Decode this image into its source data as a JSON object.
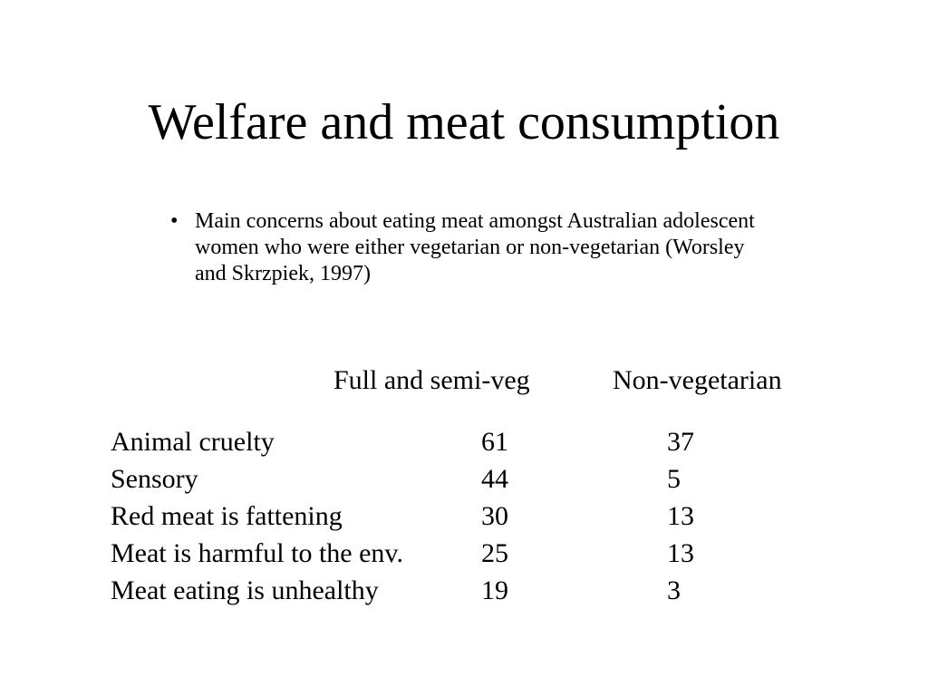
{
  "slide": {
    "title": "Welfare and meat consumption",
    "bullet": {
      "marker": "•",
      "text": "Main concerns about eating meat amongst Australian adolescent women who were either vegetarian or non-vegetarian (Worsley and Skrzpiek, 1997)"
    }
  },
  "table": {
    "columns": [
      "Full and semi-veg",
      "Non-vegetarian"
    ],
    "rows": [
      {
        "label": "Animal cruelty",
        "veg": "61",
        "nonveg": "37"
      },
      {
        "label": "Sensory",
        "veg": "44",
        "nonveg": "5"
      },
      {
        "label": "Red meat is fattening",
        "veg": "30",
        "nonveg": "13"
      },
      {
        "label": "Meat is harmful to the env.",
        "veg": "25",
        "nonveg": "13"
      },
      {
        "label": "Meat eating is unhealthy",
        "veg": "19",
        "nonveg": "3"
      }
    ]
  }
}
